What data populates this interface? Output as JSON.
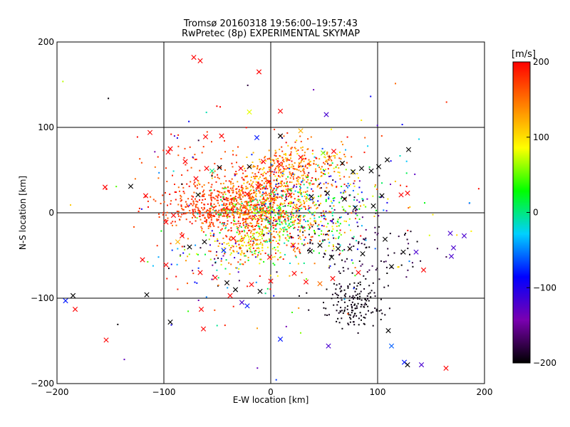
{
  "chart_data": {
    "type": "scatter",
    "title": "Tromsø 20160318 19:56:00–19:57:43",
    "subtitle": "RwPretec (8p) EXPERIMENTAL SKYMAP",
    "xlabel": "E-W location [km]",
    "ylabel": "N-S location [km]",
    "xlim": [
      -200,
      200
    ],
    "ylim": [
      -200,
      200
    ],
    "grid": true,
    "x_ticks": [
      -200,
      -100,
      0,
      100,
      200
    ],
    "y_ticks": [
      -200,
      -100,
      0,
      100,
      200
    ],
    "x_tick_labels": [
      "−200",
      "−100",
      "0",
      "100",
      "200"
    ],
    "y_tick_labels": [
      "−200",
      "−100",
      "0",
      "100",
      "200"
    ],
    "colorbar": {
      "label": "[m/s]",
      "range": [
        -200,
        200
      ],
      "ticks": [
        200,
        100,
        0,
        -100,
        -200
      ],
      "tick_labels": [
        "200",
        "100",
        "0",
        "−100",
        "−200"
      ],
      "stops": [
        "#000000",
        "#7a00b0",
        "#0000ff",
        "#00d0ff",
        "#00ff00",
        "#ffff00",
        "#ff8000",
        "#ff0000"
      ]
    },
    "series": [
      {
        "name": "cross markers",
        "marker": "x",
        "points": [
          [
            -72,
            182,
            200
          ],
          [
            -66,
            178,
            200
          ],
          [
            -11,
            165,
            200
          ],
          [
            -20,
            118,
            80
          ],
          [
            9,
            119,
            200
          ],
          [
            52,
            115,
            -120
          ],
          [
            -113,
            94,
            200
          ],
          [
            -13,
            88,
            -80
          ],
          [
            9,
            90,
            -200
          ],
          [
            28,
            96,
            120
          ],
          [
            -46,
            90,
            200
          ],
          [
            -61,
            89,
            200
          ],
          [
            -96,
            71,
            200
          ],
          [
            -94,
            75,
            200
          ],
          [
            -80,
            60,
            200
          ],
          [
            -70,
            40,
            200
          ],
          [
            -60,
            52,
            200
          ],
          [
            -55,
            49,
            0
          ],
          [
            -48,
            53,
            -200
          ],
          [
            -28,
            52,
            200
          ],
          [
            -20,
            54,
            -200
          ],
          [
            -7,
            60,
            200
          ],
          [
            8,
            57,
            200
          ],
          [
            28,
            65,
            200
          ],
          [
            49,
            70,
            60
          ],
          [
            55,
            64,
            150
          ],
          [
            59,
            72,
            200
          ],
          [
            67,
            58,
            -200
          ],
          [
            77,
            48,
            -200
          ],
          [
            85,
            52,
            -200
          ],
          [
            94,
            49,
            -200
          ],
          [
            101,
            54,
            -200
          ],
          [
            109,
            62,
            -200
          ],
          [
            129,
            74,
            -200
          ],
          [
            -155,
            30,
            200
          ],
          [
            -131,
            31,
            -200
          ],
          [
            -117,
            20,
            200
          ],
          [
            -91,
            -3,
            200
          ],
          [
            -68,
            21,
            -200
          ],
          [
            -22,
            22,
            200
          ],
          [
            -12,
            31,
            200
          ],
          [
            -2,
            36,
            200
          ],
          [
            18,
            21,
            200
          ],
          [
            38,
            19,
            -200
          ],
          [
            53,
            23,
            -200
          ],
          [
            69,
            16,
            -200
          ],
          [
            79,
            6,
            -200
          ],
          [
            96,
            8,
            -200
          ],
          [
            104,
            20,
            -200
          ],
          [
            122,
            21,
            200
          ],
          [
            128,
            23,
            200
          ],
          [
            -98,
            -11,
            200
          ],
          [
            -83,
            -27,
            200
          ],
          [
            -76,
            -40,
            -200
          ],
          [
            -62,
            -34,
            -200
          ],
          [
            -44,
            -44,
            -80
          ],
          [
            -35,
            -30,
            200
          ],
          [
            -10,
            -26,
            80
          ],
          [
            -1,
            -52,
            200
          ],
          [
            21,
            -38,
            200
          ],
          [
            37,
            -45,
            -200
          ],
          [
            46,
            -38,
            -200
          ],
          [
            57,
            -52,
            -200
          ],
          [
            63,
            -42,
            -200
          ],
          [
            74,
            -42,
            -200
          ],
          [
            86,
            -48,
            -200
          ],
          [
            107,
            -31,
            -200
          ],
          [
            113,
            -63,
            -200
          ],
          [
            124,
            -46,
            -200
          ],
          [
            136,
            -46,
            -120
          ],
          [
            143,
            -67,
            200
          ],
          [
            168,
            -24,
            -120
          ],
          [
            169,
            -51,
            -120
          ],
          [
            171,
            -41,
            -120
          ],
          [
            181,
            -27,
            -120
          ],
          [
            -87,
            -34,
            120
          ],
          [
            -120,
            -55,
            200
          ],
          [
            -98,
            -61,
            200
          ],
          [
            -66,
            -70,
            200
          ],
          [
            -52,
            -76,
            200
          ],
          [
            -41,
            -82,
            -200
          ],
          [
            -33,
            -90,
            -200
          ],
          [
            -18,
            -84,
            200
          ],
          [
            -10,
            -92,
            -200
          ],
          [
            0,
            -80,
            200
          ],
          [
            22,
            -71,
            200
          ],
          [
            33,
            -81,
            200
          ],
          [
            46,
            -83,
            150
          ],
          [
            58,
            -77,
            200
          ],
          [
            82,
            -70,
            200
          ],
          [
            -65,
            -113,
            200
          ],
          [
            -27,
            -105,
            -120
          ],
          [
            -22,
            -109,
            -80
          ],
          [
            -38,
            -97,
            200
          ],
          [
            -116,
            -96,
            -200
          ],
          [
            -185,
            -97,
            -200
          ],
          [
            -192,
            -103,
            -80
          ],
          [
            -183,
            -113,
            200
          ],
          [
            -154,
            -149,
            200
          ],
          [
            -94,
            -128,
            -200
          ],
          [
            -63,
            -136,
            200
          ],
          [
            9,
            -148,
            -80
          ],
          [
            54,
            -156,
            -120
          ],
          [
            110,
            -138,
            -200
          ],
          [
            113,
            -156,
            -60
          ],
          [
            125,
            -175,
            -80
          ],
          [
            141,
            -178,
            -120
          ],
          [
            128,
            -178,
            -200
          ],
          [
            164,
            -182,
            200
          ]
        ]
      },
      {
        "name": "dot markers",
        "marker": "dot",
        "clusters": [
          {
            "cx": -45,
            "cy": 5,
            "sx": 28,
            "sy": 14,
            "n": 500,
            "vmin": 150,
            "vmax": 200
          },
          {
            "cx": -5,
            "cy": 25,
            "sx": 22,
            "sy": 18,
            "n": 400,
            "vmin": 100,
            "vmax": 200
          },
          {
            "cx": 30,
            "cy": 55,
            "sx": 25,
            "sy": 14,
            "n": 250,
            "vmin": 90,
            "vmax": 200
          },
          {
            "cx": 5,
            "cy": -12,
            "sx": 30,
            "sy": 24,
            "n": 500,
            "vmin": -20,
            "vmax": 200
          },
          {
            "cx": 40,
            "cy": 10,
            "sx": 35,
            "sy": 24,
            "n": 320,
            "vmin": -200,
            "vmax": 200
          },
          {
            "cx": -20,
            "cy": -35,
            "sx": 15,
            "sy": 12,
            "n": 120,
            "vmin": 60,
            "vmax": 200
          },
          {
            "cx": 78,
            "cy": -105,
            "sx": 14,
            "sy": 16,
            "n": 160,
            "vmin": -200,
            "vmax": -190
          },
          {
            "cx": 80,
            "cy": -40,
            "sx": 30,
            "sy": 22,
            "n": 110,
            "vmin": -200,
            "vmax": -170
          },
          {
            "cx": -80,
            "cy": 45,
            "sx": 25,
            "sy": 25,
            "n": 80,
            "vmin": 150,
            "vmax": 200
          },
          {
            "cx": -60,
            "cy": -55,
            "sx": 22,
            "sy": 20,
            "n": 70,
            "vmin": -200,
            "vmax": 200
          },
          {
            "cx": 0,
            "cy": 0,
            "sx": 95,
            "sy": 95,
            "n": 140,
            "vmin": -200,
            "vmax": 200
          }
        ]
      }
    ]
  }
}
